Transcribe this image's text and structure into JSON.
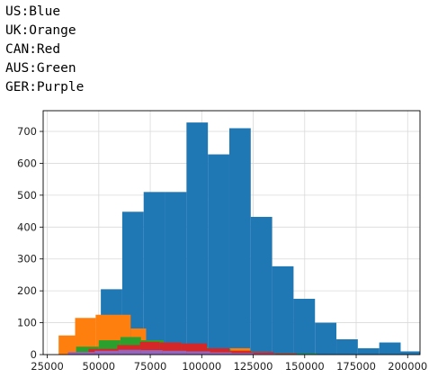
{
  "output_lines": [
    "US:Blue",
    "UK:Orange",
    "CAN:Red",
    "AUS:Green",
    "GER:Purple"
  ],
  "colors": {
    "US": "#1f77b4",
    "UK": "#ff7f0e",
    "CAN": "#d62728",
    "AUS": "#2ca02c",
    "GER": "#9467bd"
  },
  "chart_data": {
    "type": "bar",
    "subtype": "overlaid histogram",
    "title": "",
    "xlabel": "",
    "ylabel": "",
    "xlim": [
      23000,
      206000
    ],
    "ylim": [
      0,
      765
    ],
    "grid": true,
    "xticks": [
      25000,
      50000,
      75000,
      100000,
      125000,
      150000,
      175000,
      200000
    ],
    "yticks": [
      0,
      100,
      200,
      300,
      400,
      500,
      600,
      700
    ],
    "series": [
      {
        "key": "US",
        "color": "#1f77b4",
        "bins": [
          [
            51000,
            61400,
            205
          ],
          [
            61400,
            71800,
            448
          ],
          [
            71800,
            82200,
            510
          ],
          [
            82200,
            92600,
            510
          ],
          [
            92600,
            103000,
            728
          ],
          [
            103000,
            113400,
            628
          ],
          [
            113400,
            123800,
            710
          ],
          [
            123800,
            134200,
            432
          ],
          [
            134200,
            144600,
            277
          ],
          [
            144600,
            155000,
            175
          ],
          [
            155000,
            165400,
            100
          ],
          [
            165400,
            175800,
            48
          ],
          [
            175800,
            186200,
            20
          ],
          [
            186200,
            196600,
            38
          ],
          [
            196600,
            207000,
            10
          ]
        ]
      },
      {
        "key": "UK",
        "color": "#ff7f0e",
        "bins": [
          [
            30500,
            38500,
            60
          ],
          [
            38500,
            48500,
            115
          ],
          [
            48500,
            65500,
            125
          ],
          [
            65500,
            73000,
            82
          ],
          [
            73000,
            81500,
            45
          ],
          [
            81500,
            92000,
            27
          ],
          [
            92000,
            103500,
            20
          ],
          [
            103500,
            113500,
            15
          ],
          [
            113500,
            123500,
            20
          ],
          [
            123500,
            132000,
            8
          ],
          [
            132000,
            142000,
            3
          ]
        ]
      },
      {
        "key": "AUS",
        "color": "#2ca02c",
        "bins": [
          [
            39000,
            50000,
            25
          ],
          [
            50000,
            60500,
            45
          ],
          [
            60500,
            70500,
            55
          ],
          [
            70500,
            81500,
            45
          ],
          [
            81500,
            92500,
            35
          ],
          [
            92500,
            103000,
            25
          ],
          [
            103000,
            114000,
            18
          ],
          [
            114000,
            124500,
            12
          ],
          [
            124500,
            135000,
            7
          ],
          [
            135000,
            145500,
            5
          ],
          [
            145500,
            156000,
            3
          ]
        ]
      },
      {
        "key": "CAN",
        "color": "#d62728",
        "bins": [
          [
            45000,
            59000,
            18
          ],
          [
            59000,
            70000,
            30
          ],
          [
            70000,
            79500,
            40
          ],
          [
            79500,
            90000,
            38
          ],
          [
            90000,
            102500,
            35
          ],
          [
            102500,
            113500,
            20
          ],
          [
            113500,
            124000,
            12
          ],
          [
            124000,
            135000,
            8
          ],
          [
            135000,
            146000,
            4
          ]
        ]
      },
      {
        "key": "GER",
        "color": "#9467bd",
        "bins": [
          [
            35000,
            48000,
            8
          ],
          [
            48000,
            59500,
            12
          ],
          [
            59500,
            70500,
            15
          ],
          [
            70500,
            81000,
            14
          ],
          [
            81000,
            92500,
            12
          ],
          [
            92500,
            104000,
            10
          ],
          [
            104000,
            114500,
            7
          ],
          [
            114500,
            125000,
            5
          ],
          [
            125000,
            136000,
            3
          ],
          [
            136000,
            146000,
            2
          ]
        ]
      }
    ]
  }
}
